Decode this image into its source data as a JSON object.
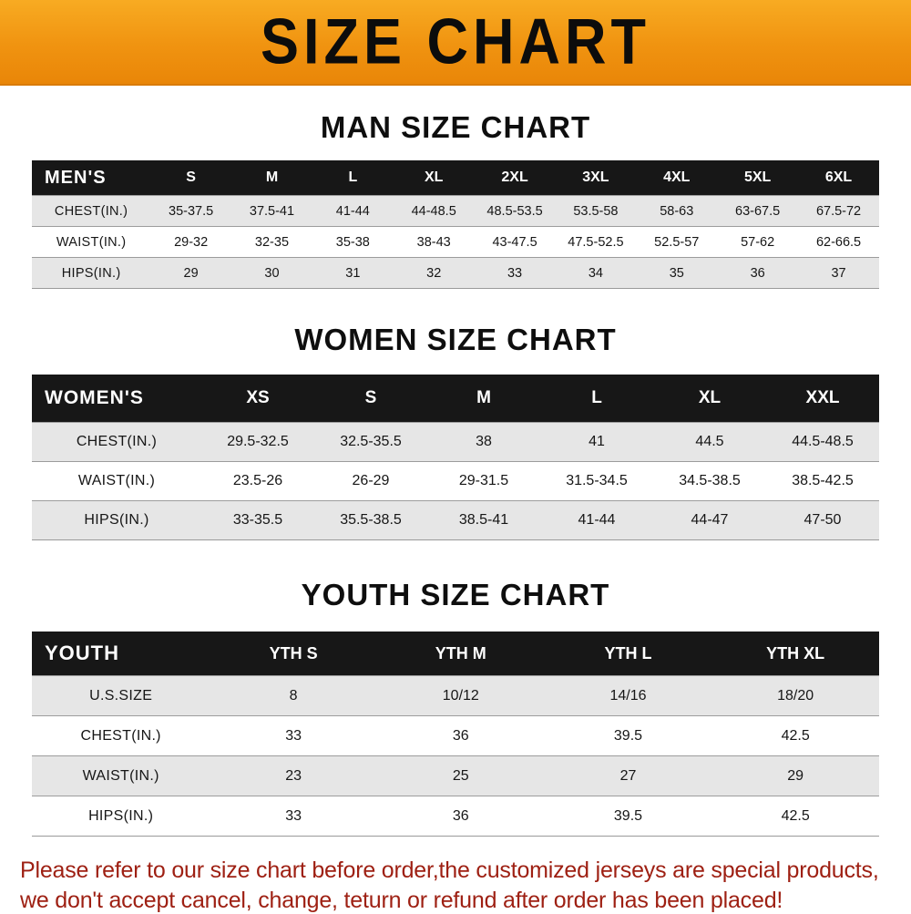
{
  "banner": {
    "title": "SIZE CHART"
  },
  "colors": {
    "banner_orange": "#f09310",
    "header_black": "#171717",
    "row_gray": "#e6e6e6",
    "notice_red": "#9e2013"
  },
  "sections": [
    {
      "heading": "MAN SIZE CHART",
      "header": [
        "MEN'S",
        "S",
        "M",
        "L",
        "XL",
        "2XL",
        "3XL",
        "4XL",
        "5XL",
        "6XL"
      ],
      "rows": [
        [
          "CHEST(IN.)",
          "35-37.5",
          "37.5-41",
          "41-44",
          "44-48.5",
          "48.5-53.5",
          "53.5-58",
          "58-63",
          "63-67.5",
          "67.5-72"
        ],
        [
          "WAIST(IN.)",
          "29-32",
          "32-35",
          "35-38",
          "38-43",
          "43-47.5",
          "47.5-52.5",
          "52.5-57",
          "57-62",
          "62-66.5"
        ],
        [
          "HIPS(IN.)",
          "29",
          "30",
          "31",
          "32",
          "33",
          "34",
          "35",
          "36",
          "37"
        ]
      ]
    },
    {
      "heading": "WOMEN SIZE CHART",
      "header": [
        "WOMEN'S",
        "XS",
        "S",
        "M",
        "L",
        "XL",
        "XXL"
      ],
      "rows": [
        [
          "CHEST(IN.)",
          "29.5-32.5",
          "32.5-35.5",
          "38",
          "41",
          "44.5",
          "44.5-48.5"
        ],
        [
          "WAIST(IN.)",
          "23.5-26",
          "26-29",
          "29-31.5",
          "31.5-34.5",
          "34.5-38.5",
          "38.5-42.5"
        ],
        [
          "HIPS(IN.)",
          "33-35.5",
          "35.5-38.5",
          "38.5-41",
          "41-44",
          "44-47",
          "47-50"
        ]
      ]
    },
    {
      "heading": "YOUTH SIZE CHART",
      "header": [
        "YOUTH",
        "YTH S",
        "YTH M",
        "YTH L",
        "YTH XL"
      ],
      "rows": [
        [
          "U.S.SIZE",
          "8",
          "10/12",
          "14/16",
          "18/20"
        ],
        [
          "CHEST(IN.)",
          "33",
          "36",
          "39.5",
          "42.5"
        ],
        [
          "WAIST(IN.)",
          "23",
          "25",
          "27",
          "29"
        ],
        [
          "HIPS(IN.)",
          "33",
          "36",
          "39.5",
          "42.5"
        ]
      ]
    }
  ],
  "footer": {
    "line1": "Please refer to our size chart before order,the customized jerseys are special products,",
    "line2": "we don't accept cancel, change, teturn or refund after order has been placed!"
  }
}
